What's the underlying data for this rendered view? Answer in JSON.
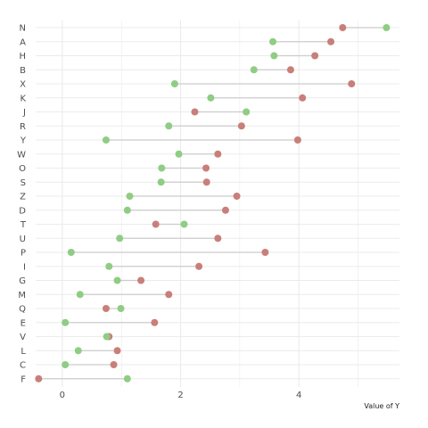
{
  "chart_data": {
    "type": "scatter",
    "subtype": "dumbbell",
    "orientation": "horizontal",
    "title": "",
    "xlabel": "Value of Y",
    "ylabel": "",
    "xlim": [
      -0.45,
      5.7
    ],
    "x_ticks": [
      0,
      2,
      4
    ],
    "x_tick_labels": [
      "0",
      "2",
      "4"
    ],
    "grid": true,
    "legend": "none",
    "colors": {
      "series1": "#c97f79",
      "series2": "#8fcd84",
      "segment": "#cccccc",
      "grid": "#ebebeb"
    },
    "categories": [
      "N",
      "A",
      "H",
      "B",
      "X",
      "K",
      "J",
      "R",
      "Y",
      "W",
      "O",
      "S",
      "Z",
      "D",
      "T",
      "U",
      "P",
      "I",
      "G",
      "M",
      "Q",
      "E",
      "V",
      "L",
      "C",
      "F"
    ],
    "series": [
      {
        "values": [
          4.74,
          4.54,
          4.27,
          3.86,
          4.89,
          4.06,
          2.24,
          3.03,
          3.98,
          2.63,
          2.43,
          2.44,
          2.95,
          2.76,
          1.58,
          2.63,
          3.43,
          2.31,
          1.33,
          1.8,
          0.74,
          1.56,
          0.79,
          0.93,
          0.87,
          -0.4
        ]
      },
      {
        "values": [
          5.48,
          3.56,
          3.58,
          3.24,
          1.9,
          2.51,
          3.11,
          1.8,
          0.74,
          1.97,
          1.68,
          1.67,
          1.14,
          1.1,
          2.06,
          0.97,
          0.15,
          0.79,
          0.93,
          0.3,
          0.99,
          0.05,
          0.75,
          0.27,
          0.05,
          1.1
        ]
      }
    ]
  }
}
